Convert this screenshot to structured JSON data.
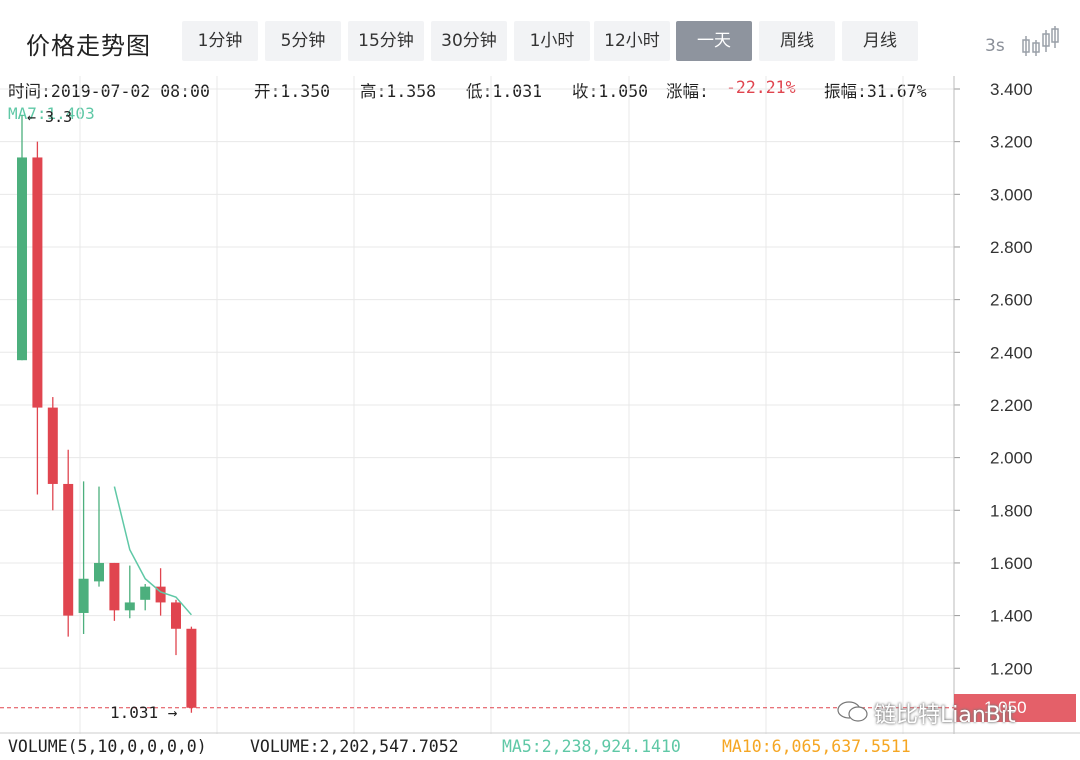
{
  "header": {
    "title": "价格走势图",
    "tabs": [
      "1分钟",
      "5分钟",
      "15分钟",
      "30分钟",
      "1小时",
      "12小时",
      "一天",
      "周线",
      "月线"
    ],
    "active_tab": "一天",
    "refresh": "3s"
  },
  "info": {
    "time": "时间:2019-07-02 08:00",
    "open": "开:1.350",
    "high": "高:1.358",
    "low": "低:1.031",
    "close": "收:1.050",
    "change_label": "涨幅:",
    "change_value": "-22.21%",
    "amplitude": "振幅:31.67%"
  },
  "ma_label": "MA7:1.403",
  "high_marker": "← 3.3",
  "low_marker": "1.031 →",
  "price_tag": "1.050",
  "watermark": "链比特LianBit",
  "bottom": {
    "volume_params": "VOLUME(5,10,0,0,0,0)",
    "volume": "VOLUME:2,202,547.7052",
    "ma5": "MA5:2,238,924.1410",
    "ma10": "MA10:6,065,637.5511"
  },
  "colors": {
    "up": "#4caf7d",
    "down": "#e0454f",
    "ma": "#5fc8a6",
    "grid": "#e8e8e8"
  },
  "chart_data": {
    "type": "candlestick",
    "y_ticks": [
      "3.400",
      "3.200",
      "3.000",
      "2.800",
      "2.600",
      "2.400",
      "2.200",
      "2.000",
      "1.800",
      "1.600",
      "1.400",
      "1.200"
    ],
    "ylim": [
      1.0,
      3.45
    ],
    "candles": [
      {
        "open": 2.37,
        "close": 3.14,
        "high": 3.3,
        "low": 2.37
      },
      {
        "open": 3.14,
        "close": 2.19,
        "high": 3.2,
        "low": 1.86
      },
      {
        "open": 2.19,
        "close": 1.9,
        "high": 2.23,
        "low": 1.8
      },
      {
        "open": 1.9,
        "close": 1.4,
        "high": 2.03,
        "low": 1.32
      },
      {
        "open": 1.41,
        "close": 1.54,
        "high": 1.91,
        "low": 1.33
      },
      {
        "open": 1.53,
        "close": 1.6,
        "high": 1.89,
        "low": 1.51
      },
      {
        "open": 1.6,
        "close": 1.42,
        "high": 1.6,
        "low": 1.38
      },
      {
        "open": 1.42,
        "close": 1.45,
        "high": 1.59,
        "low": 1.39
      },
      {
        "open": 1.46,
        "close": 1.51,
        "high": 1.52,
        "low": 1.42
      },
      {
        "open": 1.51,
        "close": 1.45,
        "high": 1.58,
        "low": 1.4
      },
      {
        "open": 1.45,
        "close": 1.35,
        "high": 1.46,
        "low": 1.25
      },
      {
        "open": 1.35,
        "close": 1.05,
        "high": 1.358,
        "low": 1.031
      }
    ],
    "ma7": [
      null,
      null,
      null,
      null,
      null,
      null,
      1.89,
      1.65,
      1.54,
      1.49,
      1.47,
      1.403
    ],
    "last_price": 1.05
  }
}
